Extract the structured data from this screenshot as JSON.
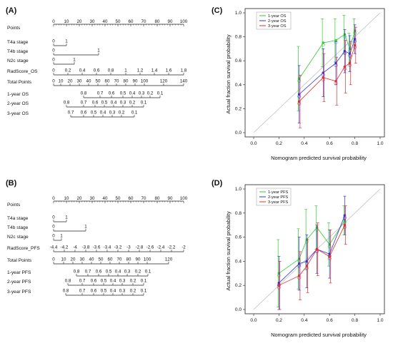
{
  "panels": [
    {
      "tag": "(A)",
      "kind": "nomogram",
      "rows": [
        {
          "label": "Points",
          "ticks": [
            "0",
            "10",
            "20",
            "30",
            "40",
            "50",
            "60",
            "70",
            "80",
            "90",
            "100"
          ]
        },
        {
          "label": "T4a  stage",
          "ticks": [
            "0",
            "1"
          ]
        },
        {
          "label": "T4b  stage",
          "ticks": [
            "0",
            "1"
          ]
        },
        {
          "label": "N2c  stage",
          "ticks": [
            "0",
            "1"
          ]
        },
        {
          "label": "RadScore_OS",
          "ticks": [
            "0",
            "0.2",
            "0.4",
            "0.6",
            "0.8",
            "1",
            "1.2",
            "1.4",
            "1.6",
            "1.8"
          ]
        },
        {
          "label": "Total Points",
          "ticks": [
            "0",
            "10",
            "20",
            "30",
            "40",
            "50",
            "60",
            "70",
            "80",
            "90",
            "100",
            "120",
            "140"
          ]
        },
        {
          "label": "1-year OS",
          "ticks": [
            "0.8",
            "0.7",
            "0.6",
            "0.5",
            "0.4",
            "0.3",
            "0.2",
            "0.1"
          ]
        },
        {
          "label": "2-year OS",
          "ticks": [
            "0.8",
            "0.7",
            "0.6",
            "0.5",
            "0.4",
            "0.3",
            "0.2",
            "0.1"
          ]
        },
        {
          "label": "3-year OS",
          "ticks": [
            "0.7",
            "0.6",
            "0.5",
            "0.4",
            "0.3",
            "0.2",
            "0.1"
          ]
        }
      ]
    },
    {
      "tag": "(B)",
      "kind": "nomogram",
      "rows": [
        {
          "label": "Points",
          "ticks": [
            "0",
            "10",
            "20",
            "30",
            "40",
            "50",
            "60",
            "70",
            "80",
            "90",
            "100"
          ]
        },
        {
          "label": "T4a  stage",
          "ticks": [
            "0",
            "1"
          ]
        },
        {
          "label": "T4b  stage",
          "ticks": [
            "0",
            "1"
          ]
        },
        {
          "label": "N2c  stage",
          "ticks": [
            "0",
            "1"
          ]
        },
        {
          "label": "RadScore_PFS",
          "ticks": [
            "-4.4",
            "-4.2",
            "-4",
            "-3.8",
            "-3.6",
            "-3.4",
            "-3.2",
            "-3",
            "-2.8",
            "-2.6",
            "-2.4",
            "-2.2",
            "-2"
          ]
        },
        {
          "label": "Total Points",
          "ticks": [
            "0",
            "10",
            "20",
            "30",
            "40",
            "50",
            "60",
            "70",
            "80",
            "90",
            "100",
            "120"
          ]
        },
        {
          "label": "1-year PFS",
          "ticks": [
            "0.8",
            "0.7",
            "0.6",
            "0.5",
            "0.4",
            "0.3",
            "0.2",
            "0.1"
          ]
        },
        {
          "label": "2-year PFS",
          "ticks": [
            "0.8",
            "0.7",
            "0.6",
            "0.5",
            "0.4",
            "0.3",
            "0.2",
            "0.1"
          ]
        },
        {
          "label": "3-year PFS",
          "ticks": [
            "0.8",
            "0.7",
            "0.6",
            "0.5",
            "0.4",
            "0.3",
            "0.2",
            "0.1"
          ]
        }
      ]
    },
    {
      "tag": "(C)",
      "kind": "calibration",
      "ylabel": "Actual fraction survival probability",
      "xlabel": "Nomogram predicted survival probability",
      "xticks": [
        "0.0",
        "0.2",
        "0.4",
        "0.6",
        "0.8",
        "1.0"
      ],
      "yticks": [
        "0.0",
        "0.2",
        "0.4",
        "0.6",
        "0.8",
        "1.0"
      ],
      "legend": [
        "1-year OS",
        "2-year OS",
        "3-year OS"
      ]
    },
    {
      "tag": "(D)",
      "kind": "calibration",
      "ylabel": "Actual fraction survival probability",
      "xlabel": "Nomogram predicted survival probability",
      "xticks": [
        "0.0",
        "0.2",
        "0.4",
        "0.6",
        "0.8",
        "1.0"
      ],
      "yticks": [
        "0.0",
        "0.2",
        "0.4",
        "0.6",
        "0.8",
        "1.0"
      ],
      "legend": [
        "1-year PFS",
        "2-year PFS",
        "3-year PFS"
      ]
    }
  ],
  "colors": {
    "series1": "#33cc33",
    "series2": "#3333dd",
    "series3": "#e03030",
    "diagonal": "#bbbbbb",
    "axis": "#222222"
  },
  "chart_data": [
    {
      "type": "scatter",
      "panel": "(C)",
      "xlim": [
        0,
        1
      ],
      "ylim": [
        0,
        1
      ],
      "reference_line": "diagonal",
      "series": [
        {
          "name": "1-year OS",
          "x": [
            0.36,
            0.55,
            0.65,
            0.72,
            0.76,
            0.8
          ],
          "y": [
            0.45,
            0.75,
            0.77,
            0.82,
            0.7,
            0.85
          ],
          "err": [
            0.27,
            0.2,
            0.18,
            0.16,
            0.13,
            0.1
          ]
        },
        {
          "name": "2-year OS",
          "x": [
            0.36,
            0.55,
            0.65,
            0.72,
            0.76,
            0.8
          ],
          "y": [
            0.32,
            0.5,
            0.58,
            0.68,
            0.66,
            0.78
          ],
          "err": [
            0.24,
            0.2,
            0.18,
            0.18,
            0.15,
            0.12
          ]
        },
        {
          "name": "3-year OS",
          "x": [
            0.36,
            0.55,
            0.65,
            0.72,
            0.76,
            0.8
          ],
          "y": [
            0.26,
            0.46,
            0.43,
            0.55,
            0.58,
            0.73
          ],
          "err": [
            0.22,
            0.2,
            0.2,
            0.22,
            0.18,
            0.15
          ]
        }
      ]
    },
    {
      "type": "scatter",
      "panel": "(D)",
      "xlim": [
        0,
        1
      ],
      "ylim": [
        0,
        1
      ],
      "reference_line": "diagonal",
      "series": [
        {
          "name": "1-year PFS",
          "x": [
            0.2,
            0.36,
            0.42,
            0.5,
            0.6,
            0.72
          ],
          "y": [
            0.3,
            0.42,
            0.58,
            0.68,
            0.54,
            0.74
          ],
          "err": [
            0.28,
            0.25,
            0.25,
            0.18,
            0.18,
            0.12
          ]
        },
        {
          "name": "2-year PFS",
          "x": [
            0.2,
            0.36,
            0.42,
            0.5,
            0.6,
            0.72
          ],
          "y": [
            0.22,
            0.38,
            0.4,
            0.5,
            0.46,
            0.78
          ],
          "err": [
            0.22,
            0.22,
            0.22,
            0.2,
            0.2,
            0.16
          ]
        },
        {
          "name": "3-year PFS",
          "x": [
            0.2,
            0.36,
            0.42,
            0.5,
            0.6,
            0.72
          ],
          "y": [
            0.2,
            0.28,
            0.36,
            0.5,
            0.44,
            0.7
          ],
          "err": [
            0.2,
            0.2,
            0.22,
            0.22,
            0.22,
            0.16
          ]
        }
      ]
    }
  ]
}
